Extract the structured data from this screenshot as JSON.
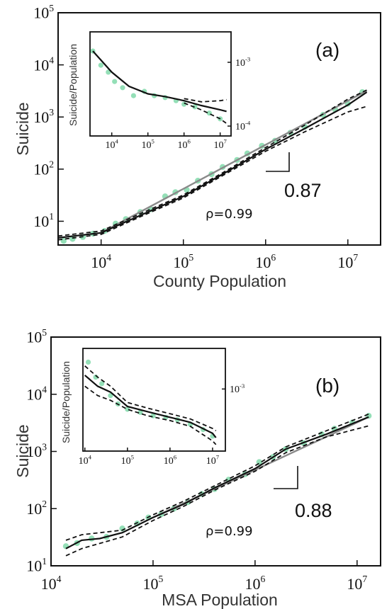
{
  "chart_data": [
    {
      "panel": "(a)",
      "type": "scatter",
      "xlabel": "County Population",
      "ylabel": "Suicide",
      "x_scale": "log",
      "y_scale": "log",
      "xlim": [
        3000,
        25000000
      ],
      "ylim": [
        3.5,
        100000
      ],
      "x_ticks": [
        {
          "v": 10000,
          "b": "10",
          "e": "4"
        },
        {
          "v": 100000,
          "b": "10",
          "e": "5"
        },
        {
          "v": 1000000,
          "b": "10",
          "e": "6"
        },
        {
          "v": 10000000,
          "b": "10",
          "e": "7"
        }
      ],
      "y_ticks": [
        {
          "v": 10,
          "b": "10",
          "e": "1"
        },
        {
          "v": 100,
          "b": "10",
          "e": "2"
        },
        {
          "v": 1000,
          "b": "10",
          "e": "3"
        },
        {
          "v": 10000,
          "b": "10",
          "e": "4"
        },
        {
          "v": 100000,
          "b": "10",
          "e": "5"
        }
      ],
      "slope_label": "0.87",
      "rho_label": "ρ=0.99",
      "point_color": "#3cc47c",
      "scatter_points": [
        [
          3500,
          4.2
        ],
        [
          4500,
          4.6
        ],
        [
          6000,
          5.0
        ],
        [
          8000,
          5.8
        ],
        [
          11000,
          6.5
        ],
        [
          15000,
          9.0
        ],
        [
          20000,
          11.0
        ],
        [
          30000,
          15.0
        ],
        [
          40000,
          17.0
        ],
        [
          60000,
          30.0
        ],
        [
          80000,
          36.0
        ],
        [
          110000,
          40.0
        ],
        [
          150000,
          60.0
        ],
        [
          220000,
          80.0
        ],
        [
          300000,
          110.0
        ],
        [
          450000,
          150.0
        ],
        [
          600000,
          200.0
        ],
        [
          900000,
          280.0
        ],
        [
          1300000,
          350.0
        ],
        [
          2000000,
          500.0
        ],
        [
          3000000,
          650.0
        ],
        [
          5000000,
          1100.0
        ],
        [
          7000000,
          1400.0
        ],
        [
          10000000,
          1800.0
        ],
        [
          15000000,
          3000.0
        ]
      ],
      "fit_line": [
        [
          3000,
          4.8
        ],
        [
          10000,
          6.0
        ],
        [
          30000,
          13.0
        ],
        [
          100000,
          30.0
        ],
        [
          300000,
          80.0
        ],
        [
          1000000,
          240.0
        ],
        [
          3000000,
          600.0
        ],
        [
          10000000,
          1700.0
        ],
        [
          17000000,
          3000.0
        ]
      ],
      "ci_upper": [
        [
          3000,
          5.2
        ],
        [
          10000,
          6.5
        ],
        [
          30000,
          14.0
        ],
        [
          100000,
          32.0
        ],
        [
          300000,
          85.0
        ],
        [
          1000000,
          260.0
        ],
        [
          3000000,
          700.0
        ],
        [
          10000000,
          2200.0
        ],
        [
          17000000,
          3300.0
        ]
      ],
      "ci_lower": [
        [
          3000,
          4.4
        ],
        [
          10000,
          5.6
        ],
        [
          30000,
          12.2
        ],
        [
          100000,
          28.0
        ],
        [
          300000,
          75.0
        ],
        [
          1000000,
          220.0
        ],
        [
          3000000,
          520.0
        ],
        [
          10000000,
          1250.0
        ],
        [
          17000000,
          1600.0
        ]
      ],
      "powerlaw_line": [
        [
          10000,
          6.0
        ],
        [
          17000000,
          3200.0
        ]
      ],
      "inset": {
        "type": "scatter",
        "ylabel": "Suicide/Population",
        "x_scale": "log",
        "y_scale": "log",
        "xlim": [
          2500,
          20000000
        ],
        "ylim": [
          7e-05,
          0.003
        ],
        "x_ticks": [
          {
            "v": 10000,
            "b": "10",
            "e": "4"
          },
          {
            "v": 100000,
            "b": "10",
            "e": "5"
          },
          {
            "v": 1000000,
            "b": "10",
            "e": "6"
          },
          {
            "v": 10000000,
            "b": "10",
            "e": "7"
          }
        ],
        "y_ticks": [
          {
            "v": 0.001,
            "b": "10",
            "e": "-3"
          },
          {
            "v": 0.0001,
            "b": "10",
            "e": "-4"
          }
        ],
        "scatter_points": [
          [
            3000,
            0.0015
          ],
          [
            5000,
            0.0009
          ],
          [
            8000,
            0.0007
          ],
          [
            12000,
            0.0005
          ],
          [
            20000,
            0.0004
          ],
          [
            40000,
            0.0003
          ],
          [
            80000,
            0.00035
          ],
          [
            150000,
            0.0003
          ],
          [
            300000,
            0.00028
          ],
          [
            600000,
            0.00025
          ],
          [
            1000000,
            0.00022
          ],
          [
            2000000,
            0.0002
          ],
          [
            5000000,
            0.00016
          ],
          [
            10000000,
            0.00013
          ]
        ],
        "fit_line": [
          [
            3000,
            0.0015
          ],
          [
            10000,
            0.0007
          ],
          [
            30000,
            0.00042
          ],
          [
            100000,
            0.00032
          ],
          [
            300000,
            0.00029
          ],
          [
            1000000,
            0.00025
          ],
          [
            3000000,
            0.00021
          ],
          [
            10000000,
            0.00018
          ],
          [
            15000000,
            0.00017
          ]
        ],
        "ci_upper": [
          [
            1000000,
            0.00027
          ],
          [
            3000000,
            0.00024
          ],
          [
            10000000,
            0.00025
          ],
          [
            15000000,
            0.00026
          ]
        ],
        "ci_lower": [
          [
            1000000,
            0.00023
          ],
          [
            3000000,
            0.00018
          ],
          [
            10000000,
            0.00013
          ],
          [
            15000000,
            0.00011
          ]
        ]
      }
    },
    {
      "panel": "(b)",
      "type": "scatter",
      "xlabel": "MSA Population",
      "ylabel": "Suicide",
      "x_scale": "log",
      "y_scale": "log",
      "xlim": [
        10000,
        17000000
      ],
      "ylim": [
        10,
        100000
      ],
      "x_ticks": [
        {
          "v": 10000,
          "b": "10",
          "e": "4"
        },
        {
          "v": 100000,
          "b": "10",
          "e": "5"
        },
        {
          "v": 1000000,
          "b": "10",
          "e": "6"
        },
        {
          "v": 10000000,
          "b": "10",
          "e": "7"
        }
      ],
      "y_ticks": [
        {
          "v": 10,
          "b": "10",
          "e": "1"
        },
        {
          "v": 100,
          "b": "10",
          "e": "2"
        },
        {
          "v": 1000,
          "b": "10",
          "e": "3"
        },
        {
          "v": 10000,
          "b": "10",
          "e": "4"
        },
        {
          "v": 100000,
          "b": "10",
          "e": "5"
        }
      ],
      "slope_label": "0.88",
      "rho_label": "ρ=0.99",
      "point_color": "#3cc47c",
      "scatter_points": [
        [
          14000,
          22.0
        ],
        [
          18000,
          25.0
        ],
        [
          25000,
          30.0
        ],
        [
          35000,
          32.0
        ],
        [
          50000,
          45.0
        ],
        [
          70000,
          55.0
        ],
        [
          90000,
          70.0
        ],
        [
          120000,
          80.0
        ],
        [
          160000,
          100.0
        ],
        [
          220000,
          130.0
        ],
        [
          300000,
          180.0
        ],
        [
          400000,
          220.0
        ],
        [
          550000,
          320.0
        ],
        [
          800000,
          400.0
        ],
        [
          1100000,
          650.0
        ],
        [
          1500000,
          800.0
        ],
        [
          2000000,
          1100.0
        ],
        [
          3000000,
          1400.0
        ],
        [
          4500000,
          2000.0
        ],
        [
          6000000,
          2500.0
        ],
        [
          9000000,
          3200.0
        ],
        [
          13000000,
          4200.0
        ]
      ],
      "fit_line": [
        [
          14000,
          20.0
        ],
        [
          20000,
          28.0
        ],
        [
          30000,
          30.0
        ],
        [
          50000,
          38.0
        ],
        [
          100000,
          70.0
        ],
        [
          200000,
          120.0
        ],
        [
          400000,
          230.0
        ],
        [
          1000000,
          500.0
        ],
        [
          2000000,
          1100.0
        ],
        [
          5000000,
          2000.0
        ],
        [
          13000000,
          4000.0
        ]
      ],
      "ci_upper": [
        [
          14000,
          28.0
        ],
        [
          20000,
          35.0
        ],
        [
          50000,
          42.0
        ],
        [
          100000,
          78.0
        ],
        [
          200000,
          135.0
        ],
        [
          400000,
          250.0
        ],
        [
          1000000,
          560.0
        ],
        [
          2000000,
          1200.0
        ],
        [
          5000000,
          2300.0
        ],
        [
          13000000,
          4500.0
        ]
      ],
      "ci_lower": [
        [
          14000,
          15.0
        ],
        [
          20000,
          20.0
        ],
        [
          50000,
          32.0
        ],
        [
          100000,
          62.0
        ],
        [
          200000,
          110.0
        ],
        [
          400000,
          210.0
        ],
        [
          1000000,
          450.0
        ],
        [
          2000000,
          950.0
        ],
        [
          5000000,
          1800.0
        ],
        [
          13000000,
          2800.0
        ]
      ],
      "powerlaw_line": [
        [
          100000,
          70.0
        ],
        [
          13000000,
          4000.0
        ]
      ],
      "inset": {
        "type": "scatter",
        "ylabel": "Suicide/Population",
        "x_scale": "log",
        "y_scale": "log",
        "xlim": [
          9000,
          20000000
        ],
        "ylim": [
          0.00012,
          0.004
        ],
        "x_ticks": [
          {
            "v": 10000,
            "b": "10",
            "e": "4"
          },
          {
            "v": 100000,
            "b": "10",
            "e": "5"
          },
          {
            "v": 1000000,
            "b": "10",
            "e": "6"
          },
          {
            "v": 10000000,
            "b": "10",
            "e": "7"
          }
        ],
        "y_ticks": [
          {
            "v": 0.001,
            "b": "10",
            "e": "-3"
          }
        ],
        "scatter_points": [
          [
            12000,
            0.0025
          ],
          [
            18000,
            0.0015
          ],
          [
            25000,
            0.0012
          ],
          [
            40000,
            0.0008
          ],
          [
            60000,
            0.0006
          ],
          [
            100000,
            0.0005
          ],
          [
            200000,
            0.00045
          ],
          [
            400000,
            0.0004
          ],
          [
            800000,
            0.00038
          ],
          [
            1500000,
            0.00035
          ],
          [
            3000000,
            0.0003
          ],
          [
            6000000,
            0.00025
          ],
          [
            10000000,
            0.0002
          ]
        ],
        "fit_line": [
          [
            10000,
            0.0016
          ],
          [
            20000,
            0.0011
          ],
          [
            40000,
            0.0009
          ],
          [
            100000,
            0.00055
          ],
          [
            300000,
            0.00046
          ],
          [
            1000000,
            0.00038
          ],
          [
            3000000,
            0.00032
          ],
          [
            10000000,
            0.00022
          ],
          [
            12000000,
            0.00019
          ]
        ],
        "ci_upper": [
          [
            10000,
            0.0022
          ],
          [
            20000,
            0.0015
          ],
          [
            40000,
            0.0011
          ],
          [
            100000,
            0.00063
          ],
          [
            300000,
            0.00052
          ],
          [
            1000000,
            0.00043
          ],
          [
            3000000,
            0.00036
          ],
          [
            10000000,
            0.00026
          ],
          [
            12000000,
            0.00024
          ]
        ],
        "ci_lower": [
          [
            10000,
            0.0011
          ],
          [
            20000,
            0.0008
          ],
          [
            40000,
            0.00068
          ],
          [
            100000,
            0.0005
          ],
          [
            300000,
            0.0004
          ],
          [
            1000000,
            0.00034
          ],
          [
            3000000,
            0.00028
          ],
          [
            10000000,
            0.00017
          ],
          [
            12000000,
            0.00015
          ]
        ]
      }
    }
  ]
}
